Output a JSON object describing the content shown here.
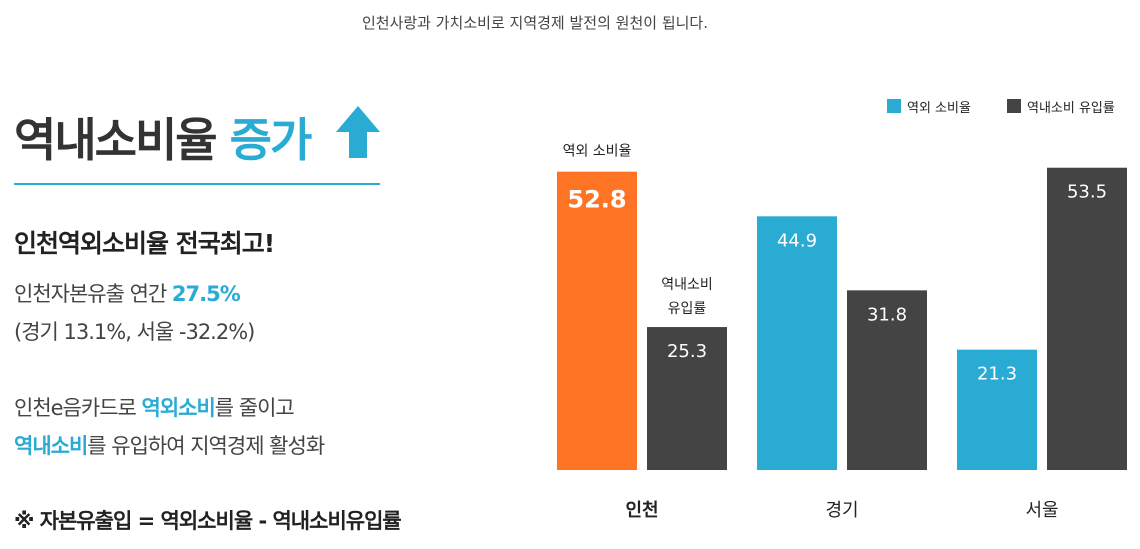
{
  "tagline": "인천사랑과 가치소비로 지역경제 발전의 원천이 됩니다.",
  "headline": {
    "main": "역내소비율 ",
    "accent": "증가"
  },
  "icons": {
    "headline_arrow": "up-arrow-icon"
  },
  "subhead": "인천역외소비율 전국최고!",
  "stat": {
    "prefix": "인천자본유출 연간 ",
    "value": "27.5%",
    "detail": "(경기 13.1%, 서울 -32.2%)"
  },
  "message": {
    "line1_prefix": "인천e음카드로 ",
    "line1_hl": "역외소비",
    "line1_suffix": "를 줄이고",
    "line2_hl": "역내소비",
    "line2_suffix": "를 유입하여 지역경제 활성화"
  },
  "formula": "※ 자본유출입 = 역외소비율 - 역내소비유입률",
  "colors": {
    "accent": "#29abd4",
    "highlight": "#ff7324",
    "dark": "#444444"
  },
  "chart_data": {
    "type": "bar",
    "categories": [
      "인천",
      "경기",
      "서울"
    ],
    "series": [
      {
        "name": "역외 소비율",
        "values": [
          52.8,
          44.9,
          21.3
        ]
      },
      {
        "name": "역내소비 유입률",
        "values": [
          25.3,
          31.8,
          53.5
        ]
      }
    ],
    "annotations": [
      "역외 소비율",
      "역내소비\n유입률"
    ],
    "legend": "top-right",
    "grid": false
  }
}
